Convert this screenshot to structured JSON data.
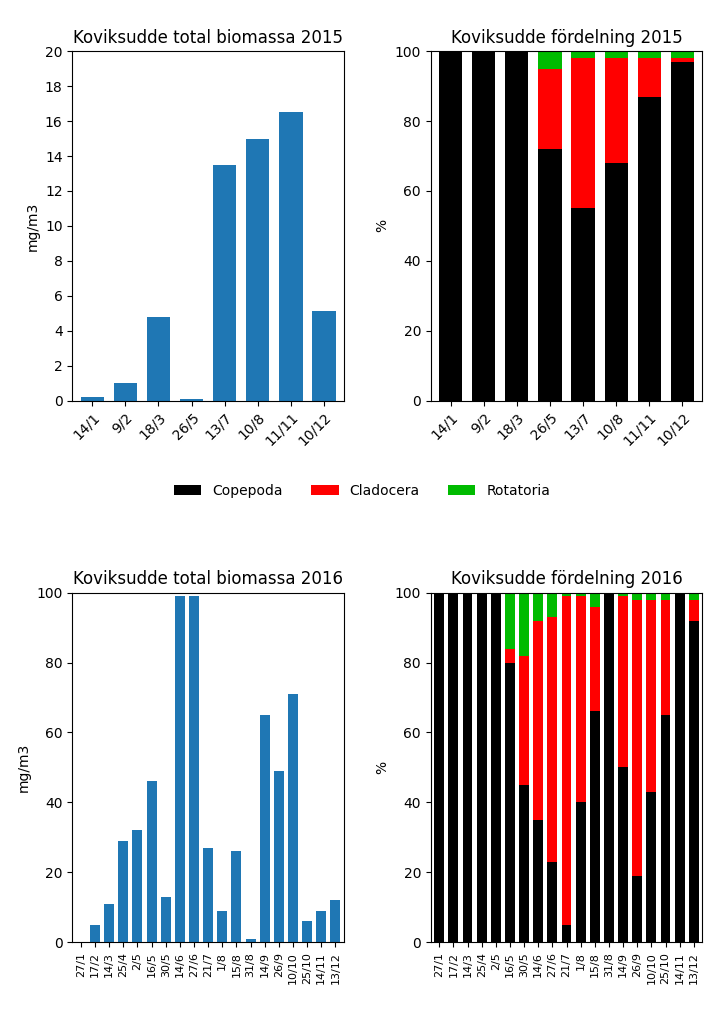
{
  "chart_data": [
    {
      "type": "bar",
      "title": "Koviksudde total biomassa 2015",
      "y_label": "mg/m3",
      "categories": [
        "14/1",
        "9/2",
        "18/3",
        "26/5",
        "13/7",
        "10/8",
        "11/11",
        "10/12"
      ],
      "values": [
        0.2,
        1.0,
        4.8,
        0.1,
        13.5,
        15.0,
        16.5,
        5.1
      ],
      "ylim": [
        0,
        20
      ],
      "yticks": [
        0,
        2,
        4,
        6,
        8,
        10,
        12,
        14,
        16,
        18,
        20
      ]
    },
    {
      "type": "bar",
      "title": "Koviksudde fördelning 2015",
      "y_label": "%",
      "stacked": true,
      "legend": "upper center",
      "categories": [
        "14/1",
        "9/2",
        "18/3",
        "26/5",
        "13/7",
        "10/8",
        "11/11",
        "10/12"
      ],
      "series": [
        {
          "name": "Copepoda",
          "color": "#000000",
          "values": [
            100,
            100,
            100,
            72,
            55,
            68,
            87,
            97
          ]
        },
        {
          "name": "Cladocera",
          "color": "#ff0000",
          "values": [
            0,
            0,
            0,
            23,
            43,
            30,
            11,
            1
          ]
        },
        {
          "name": "Rotatoria",
          "color": "#00bb00",
          "values": [
            0,
            0,
            0,
            5,
            2,
            2,
            2,
            2
          ]
        }
      ],
      "ylim": [
        0,
        100
      ],
      "yticks": [
        0,
        20,
        40,
        60,
        80,
        100
      ]
    },
    {
      "type": "bar",
      "title": "Koviksudde total biomassa 2016",
      "y_label": "mg/m3",
      "categories": [
        "27/1",
        "17/2",
        "14/3",
        "25/4",
        "2/5",
        "16/5",
        "30/5",
        "14/6",
        "27/6",
        "21/7",
        "1/8",
        "15/8",
        "31/8",
        "14/9",
        "26/9",
        "10/10",
        "25/10",
        "14/11",
        "13/12"
      ],
      "values": [
        0,
        5,
        11,
        29,
        32,
        46,
        13,
        99,
        99,
        27,
        9,
        26,
        1,
        65,
        49,
        71,
        6,
        9,
        12
      ],
      "ylim": [
        0,
        100
      ],
      "yticks": [
        0,
        20,
        40,
        60,
        80,
        100
      ]
    },
    {
      "type": "bar",
      "title": "Koviksudde fördelning 2016",
      "y_label": "%",
      "stacked": true,
      "categories": [
        "27/1",
        "17/2",
        "14/3",
        "25/4",
        "2/5",
        "16/5",
        "30/5",
        "14/6",
        "27/6",
        "21/7",
        "1/8",
        "15/8",
        "31/8",
        "14/9",
        "26/9",
        "10/10",
        "25/10",
        "14/11",
        "13/12"
      ],
      "series": [
        {
          "name": "Copepoda",
          "color": "#000000",
          "values": [
            100,
            100,
            100,
            100,
            100,
            80,
            45,
            35,
            23,
            5,
            40,
            66,
            100,
            50,
            19,
            43,
            65,
            100,
            92
          ]
        },
        {
          "name": "Cladocera",
          "color": "#ff0000",
          "values": [
            0,
            0,
            0,
            0,
            0,
            4,
            37,
            57,
            70,
            94,
            59,
            30,
            0,
            49,
            79,
            55,
            33,
            0,
            6
          ]
        },
        {
          "name": "Rotatoria",
          "color": "#00bb00",
          "values": [
            0,
            0,
            0,
            0,
            0,
            16,
            18,
            8,
            7,
            1,
            1,
            4,
            0,
            1,
            2,
            2,
            2,
            0,
            2
          ]
        }
      ],
      "ylim": [
        0,
        100
      ],
      "yticks": [
        0,
        20,
        40,
        60,
        80,
        100
      ]
    }
  ]
}
